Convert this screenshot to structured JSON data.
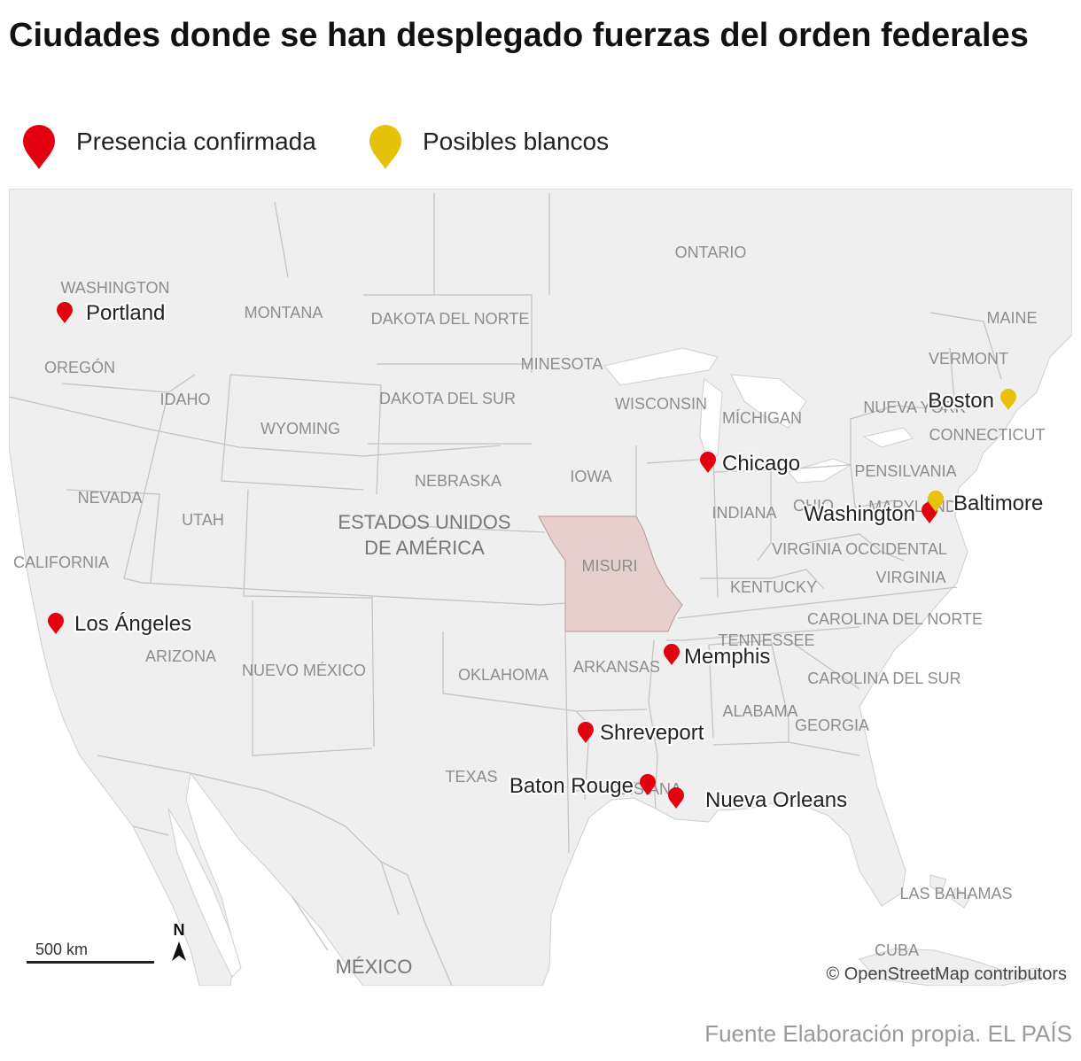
{
  "title": "Ciudades donde se han desplegado fuerzas del orden federales",
  "legend": {
    "confirmed": {
      "label": "Presencia confirmada",
      "icon": "map-pin-icon",
      "color": "#e3000f"
    },
    "possible": {
      "label": "Posibles blancos",
      "icon": "map-pin-icon",
      "color": "#e6c20c"
    }
  },
  "colors": {
    "land": "#efefef",
    "water": "#ffffff",
    "border": "#c4c4c4",
    "highlight": "#e6cfcc"
  },
  "highlighted_state": "MISURI",
  "cities": [
    {
      "name": "Portland",
      "status": "confirmed"
    },
    {
      "name": "Los Ángeles",
      "status": "confirmed"
    },
    {
      "name": "Chicago",
      "status": "confirmed"
    },
    {
      "name": "Washington",
      "status": "confirmed"
    },
    {
      "name": "Baltimore",
      "status": "possible"
    },
    {
      "name": "Boston",
      "status": "possible"
    },
    {
      "name": "Memphis",
      "status": "confirmed"
    },
    {
      "name": "Shreveport",
      "status": "confirmed"
    },
    {
      "name": "Baton Rouge",
      "status": "confirmed"
    },
    {
      "name": "Nueva Orleans",
      "status": "confirmed"
    }
  ],
  "regions": [
    "ONTARIO",
    "WASHINGTON",
    "MONTANA",
    "DAKOTA DEL NORTE",
    "MAINE",
    "VERMONT",
    "OREGÓN",
    "MINESOTA",
    "IDAHO",
    "DAKOTA DEL SUR",
    "WISCONSIN",
    "MÍCHIGAN",
    "NUEVA YORK",
    "WYOMING",
    "CONNECTICUT",
    "PENSILVANIA",
    "NEBRASKA",
    "IOWA",
    "NEVADA",
    "ESTADOS UNIDOS",
    "DE AMÉRICA",
    "UTAH",
    "INDIANA",
    "OHIO",
    "MARYLAND",
    "CALIFORNIA",
    "MISURI",
    "VIRGINIA OCCIDENTAL",
    "VIRGINIA",
    "KENTUCKY",
    "CAROLINA DEL NORTE",
    "ARIZONA",
    "TENNESSEE",
    "NUEVO MÉXICO",
    "ARKANSAS",
    "OKLAHOMA",
    "CAROLINA DEL SUR",
    "ALABAMA",
    "GEORGIA",
    "TEXAS",
    "LUISIANA",
    "LAS BAHAMAS",
    "CUBA",
    "MÉXICO"
  ],
  "scale_label": "500 km",
  "north_label": "N",
  "attribution": "© OpenStreetMap contributors",
  "source": "Fuente Elaboración propia. EL PAÍS"
}
